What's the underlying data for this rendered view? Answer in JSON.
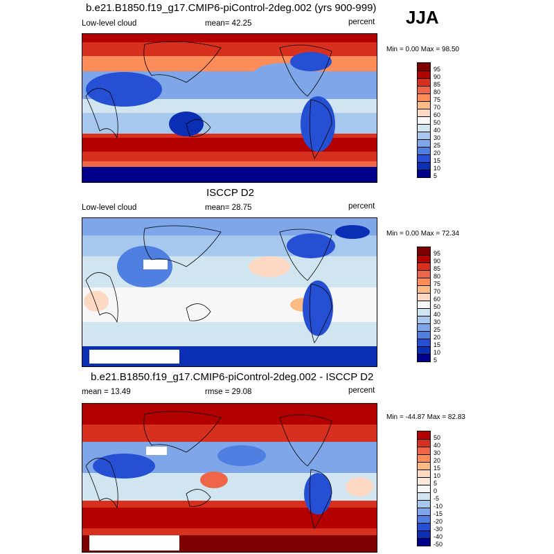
{
  "season": "JJA",
  "panels": [
    {
      "title": "b.e21.B1850.f19_g17.CMIP6-piControl-2deg.002 (yrs 900-999)",
      "left_label": "Low-level cloud",
      "center_label": "mean=  42.25",
      "right_label": "percent",
      "minmax": "Min =  0.00 Max =  98.50",
      "colorbar_labels": [
        "95",
        "90",
        "85",
        "80",
        "75",
        "70",
        "60",
        "50",
        "40",
        "30",
        "25",
        "20",
        "15",
        "10",
        "5"
      ]
    },
    {
      "title": "ISCCP D2",
      "left_label": "Low-level cloud",
      "center_label": "mean=  28.75",
      "right_label": "percent",
      "minmax": "Min =  0.00 Max =  72.34",
      "colorbar_labels": [
        "95",
        "90",
        "85",
        "80",
        "75",
        "70",
        "60",
        "50",
        "40",
        "30",
        "25",
        "20",
        "15",
        "10",
        "5"
      ]
    },
    {
      "title": "b.e21.B1850.f19_g17.CMIP6-piControl-2deg.002 - ISCCP D2",
      "left_label": "mean =  13.49",
      "center_label": "rmse =  29.08",
      "right_label": "percent",
      "minmax": "Min = -44.87 Max =  82.83",
      "colorbar_labels": [
        "50",
        "40",
        "30",
        "20",
        "15",
        "10",
        "5",
        "0",
        "-5",
        "-10",
        "-15",
        "-20",
        "-30",
        "-40",
        "-50"
      ]
    }
  ],
  "colors": {
    "palette": [
      "#7f0000",
      "#b30000",
      "#d7301f",
      "#ef6548",
      "#fc8d59",
      "#fdbb84",
      "#fdd9c4",
      "#f7f7f7",
      "#d1e5f0",
      "#a6c8ef",
      "#7ea6e8",
      "#4f7fe0",
      "#2650d4",
      "#0a2fb5",
      "#00008b",
      "#000060"
    ],
    "continent_outline": "#000000"
  }
}
